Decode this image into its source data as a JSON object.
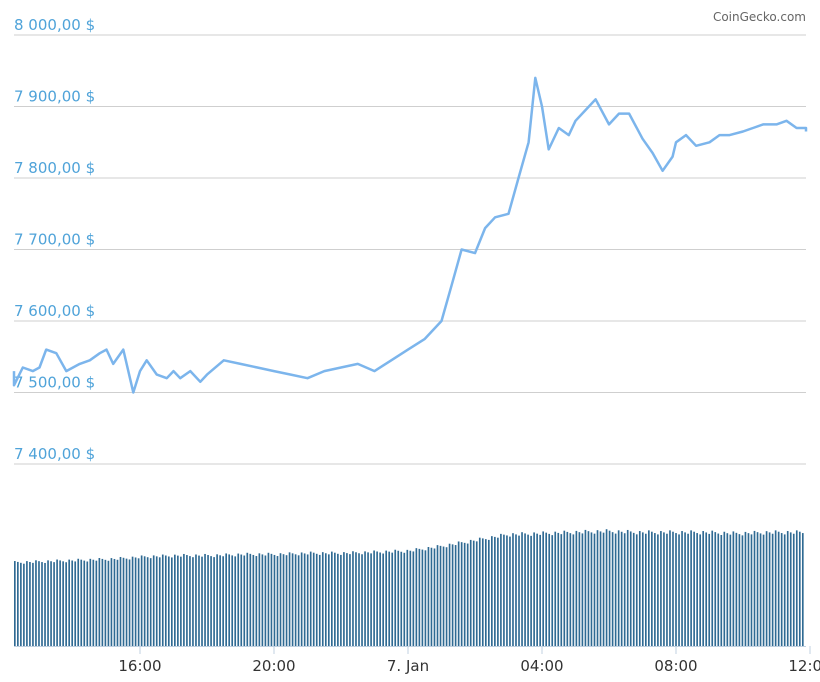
{
  "credit": "CoinGecko.com",
  "colors": {
    "line": "#7cb5ec",
    "volume": "#2f6a93",
    "ytick": "#4fa3d9",
    "grid": "#cfcfcf"
  },
  "chart_data": {
    "type": "line",
    "title": "",
    "xlabel": "",
    "ylabel": "",
    "ylim": [
      7400,
      8000
    ],
    "yticks": [
      "8 000,00 $",
      "7 900,00 $",
      "7 800,00 $",
      "7 700,00 $",
      "7 600,00 $",
      "7 500,00 $",
      "7 400,00 $"
    ],
    "ytick_values": [
      8000,
      7900,
      7800,
      7700,
      7600,
      7500,
      7400
    ],
    "xticks": [
      "16:00",
      "20:00",
      "7. Jan",
      "04:00",
      "08:00",
      "12:00"
    ],
    "xtick_hours": [
      16,
      20,
      24,
      28,
      32,
      36
    ],
    "x_unit": "hours since 6 Jan 00:00",
    "grid": true,
    "legend": "none",
    "price": {
      "x": [
        12.0,
        12.2,
        12.5,
        12.8,
        13.0,
        13.2,
        13.5,
        13.8,
        14.0,
        14.2,
        14.5,
        14.8,
        15.0,
        15.2,
        15.5,
        15.8,
        16.0,
        16.2,
        16.5,
        16.8,
        17.0,
        17.2,
        17.5,
        17.8,
        18.0,
        18.5,
        19.0,
        19.5,
        20.0,
        20.5,
        21.0,
        21.5,
        22.0,
        22.5,
        23.0,
        23.5,
        24.0,
        24.5,
        25.0,
        25.3,
        25.6,
        26.0,
        26.3,
        26.6,
        27.0,
        27.3,
        27.6,
        27.8,
        28.0,
        28.2,
        28.5,
        28.8,
        29.0,
        29.3,
        29.6,
        30.0,
        30.3,
        30.6,
        31.0,
        31.3,
        31.6,
        31.9,
        32.0,
        32.3,
        32.6,
        33.0,
        33.3,
        33.6,
        34.0,
        34.3,
        34.6,
        35.0,
        35.3,
        35.6,
        36.0,
        36.3
      ],
      "values": [
        7530,
        7510,
        7535,
        7530,
        7535,
        7560,
        7555,
        7530,
        7535,
        7540,
        7545,
        7555,
        7560,
        7540,
        7560,
        7500,
        7530,
        7545,
        7525,
        7520,
        7530,
        7520,
        7530,
        7515,
        7525,
        7545,
        7540,
        7535,
        7530,
        7525,
        7520,
        7530,
        7535,
        7540,
        7530,
        7545,
        7560,
        7575,
        7600,
        7650,
        7700,
        7695,
        7730,
        7745,
        7750,
        7800,
        7850,
        7940,
        7900,
        7840,
        7870,
        7860,
        7880,
        7895,
        7910,
        7875,
        7890,
        7890,
        7855,
        7835,
        7810,
        7830,
        7850,
        7860,
        7845,
        7850,
        7860,
        7860,
        7865,
        7870,
        7875,
        7875,
        7880,
        7870,
        7870,
        7865
      ],
      "series_name": ""
    },
    "volume": {
      "relative_heights": [
        0.72,
        0.73,
        0.74,
        0.75,
        0.77,
        0.78,
        0.78,
        0.79,
        0.79,
        0.8,
        0.8,
        0.81,
        0.82,
        0.86,
        0.91,
        0.96,
        0.97,
        0.98,
        0.99,
        0.98,
        0.98,
        0.98,
        0.97,
        0.98,
        0.98
      ]
    }
  }
}
